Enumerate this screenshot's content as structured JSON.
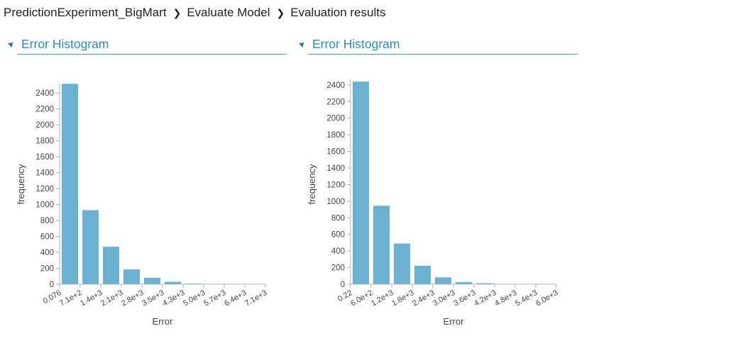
{
  "breadcrumb": {
    "items": [
      "PredictionExperiment_BigMart",
      "Evaluate Model",
      "Evaluation results"
    ]
  },
  "panels": [
    {
      "title": "Error Histogram"
    },
    {
      "title": "Error Histogram"
    }
  ],
  "colors": {
    "bar": "#6ab2d1",
    "accent": "#2e8bb8",
    "axis": "#b0b0b0"
  },
  "chart_data": [
    {
      "type": "bar",
      "xlabel": "Error",
      "ylabel": "frequency",
      "ylim": [
        0,
        2500
      ],
      "yticks": [
        0,
        200,
        400,
        600,
        800,
        1000,
        1200,
        1400,
        1600,
        1800,
        2000,
        2200,
        2400
      ],
      "xtick_labels": [
        "0.076",
        "7.1e+2",
        "1.4e+3",
        "2.1e+3",
        "2.8e+3",
        "3.5e+3",
        "4.3e+3",
        "5.0e+3",
        "5.7e+3",
        "6.4e+3",
        "7.1e+3"
      ],
      "values": [
        2515,
        930,
        470,
        185,
        80,
        30,
        8,
        2,
        1,
        1
      ],
      "grid": false
    },
    {
      "type": "bar",
      "xlabel": "Error",
      "ylabel": "frequency",
      "ylim": [
        0,
        2450
      ],
      "yticks": [
        0,
        200,
        400,
        600,
        800,
        1000,
        1200,
        1400,
        1600,
        1800,
        2000,
        2200,
        2400
      ],
      "xtick_labels": [
        "0.22",
        "6.0e+2",
        "1.2e+3",
        "1.8e+3",
        "2.4e+3",
        "3.0e+3",
        "3.6e+3",
        "4.2e+3",
        "4.8e+3",
        "5.4e+3",
        "6.0e+3"
      ],
      "values": [
        2440,
        945,
        490,
        222,
        82,
        25,
        12,
        3,
        2,
        1
      ],
      "grid": false
    }
  ]
}
